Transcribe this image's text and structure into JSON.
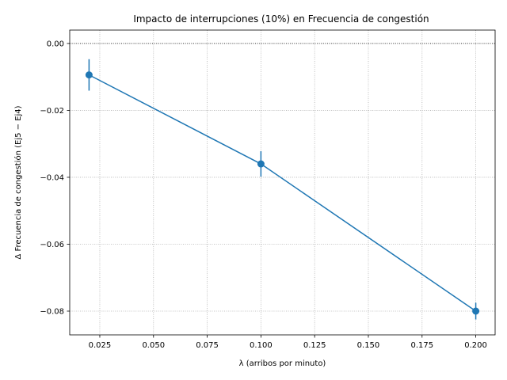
{
  "chart_data": {
    "type": "line",
    "title": "Impacto de interrupciones (10%) en Frecuencia de congestión",
    "xlabel": "λ (arribos por minuto)",
    "ylabel": "Δ Frecuencia de congestión  (Ej5 − Ej4)",
    "xlim": [
      0.011,
      0.209
    ],
    "ylim": [
      -0.0871,
      0.004
    ],
    "x_ticks": [
      0.025,
      0.05,
      0.075,
      0.1,
      0.125,
      0.15,
      0.175,
      0.2
    ],
    "x_tick_labels": [
      "0.025",
      "0.050",
      "0.075",
      "0.100",
      "0.125",
      "0.150",
      "0.175",
      "0.200"
    ],
    "y_ticks": [
      0.0,
      -0.02,
      -0.04,
      -0.06,
      -0.08
    ],
    "y_tick_labels": [
      "0.00",
      "−0.02",
      "−0.04",
      "−0.06",
      "−0.08"
    ],
    "grid": true,
    "reference_line_y": 0.0,
    "series": [
      {
        "x": [
          0.02,
          0.1,
          0.2
        ],
        "y": [
          -0.0094,
          -0.036,
          -0.08
        ],
        "yerr": [
          0.0047,
          0.0038,
          0.0025
        ],
        "color": "#1f77b4"
      }
    ]
  }
}
